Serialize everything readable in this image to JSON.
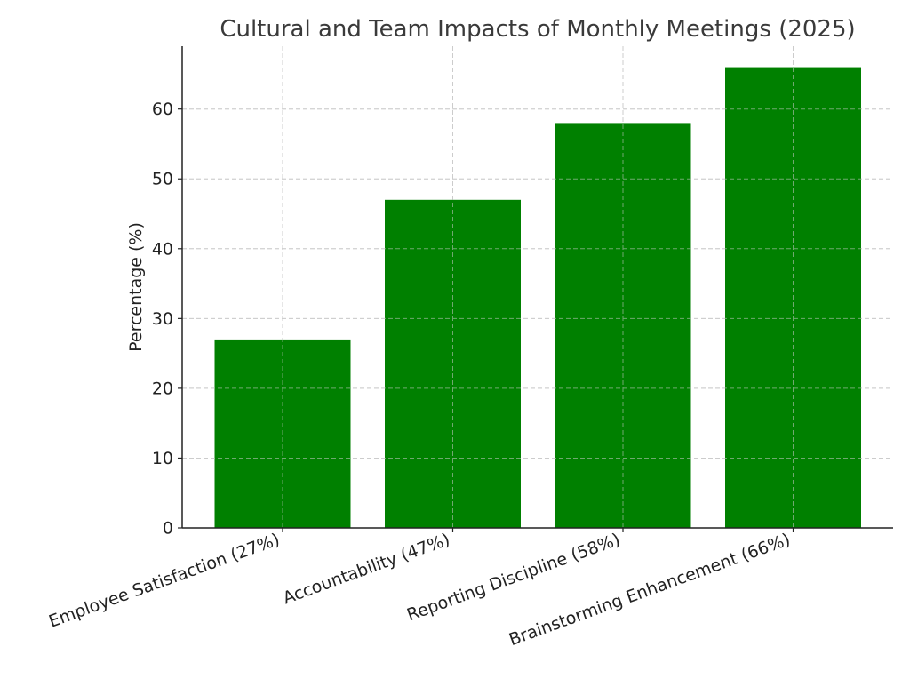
{
  "chart_data": {
    "type": "bar",
    "title": "Cultural and Team Impacts of Monthly Meetings (2025)",
    "xlabel": "",
    "ylabel": "Percentage (%)",
    "categories": [
      "Employee Satisfaction (27%)",
      "Accountability (47%)",
      "Reporting Discipline (58%)",
      "Brainstorming Enhancement (66%)"
    ],
    "values": [
      27,
      47,
      58,
      66
    ],
    "ylim": [
      0,
      69
    ],
    "yticks": [
      0,
      10,
      20,
      30,
      40,
      50,
      60
    ],
    "grid": true,
    "legend": "none",
    "colors": {
      "bar": "#008000",
      "grid": "#cccccc",
      "axis": "#222222",
      "text": "#222222",
      "title": "#3a3a3a"
    }
  }
}
